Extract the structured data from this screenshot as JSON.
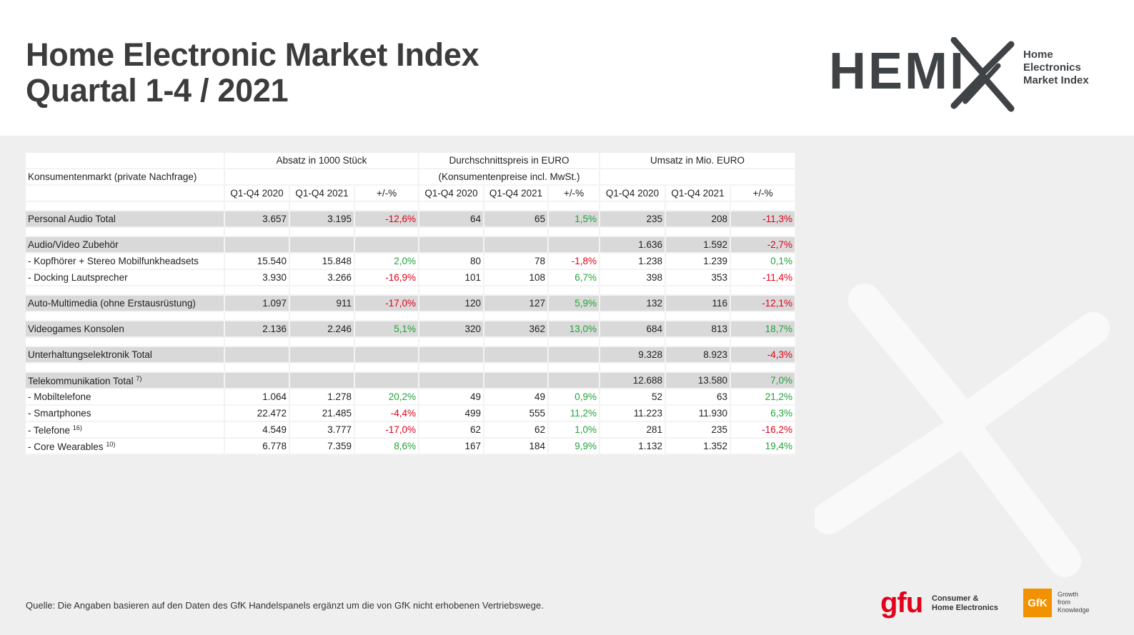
{
  "title": {
    "line1": "Home Electronic Market Index",
    "line2": "Quartal 1-4 / 2021"
  },
  "logo": {
    "word": "HEMI",
    "sub1": "Home",
    "sub2": "Electronics",
    "sub3": "Market Index"
  },
  "table": {
    "group_headers": [
      "Absatz in 1000 Stück",
      "Durchschnittspreis in EURO",
      "Umsatz in Mio. EURO"
    ],
    "market_label": "Konsumentenmarkt (private Nachfrage)",
    "price_note": "(Konsumentenpreise incl. MwSt.)",
    "columns": [
      "Q1-Q4 2020",
      "Q1-Q4 2021",
      "+/-%",
      "Q1-Q4 2020",
      "Q1-Q4 2021",
      "+/-%",
      "Q1-Q4 2020",
      "Q1-Q4 2021",
      "+/-%"
    ],
    "rows": [
      {
        "label": "Personal Audio Total",
        "values": [
          "3.657",
          "3.195",
          "-12,6%",
          "64",
          "65",
          "1,5%",
          "235",
          "208",
          "-11,3%"
        ]
      },
      {
        "label": "Audio/Video Zubehör",
        "values": [
          "",
          "",
          "",
          "",
          "",
          "",
          "1.636",
          "1.592",
          "-2,7%"
        ]
      },
      {
        "label": "- Kopfhörer + Stereo Mobilfunkheadsets",
        "values": [
          "15.540",
          "15.848",
          "2,0%",
          "80",
          "78",
          "-1,8%",
          "1.238",
          "1.239",
          "0,1%"
        ]
      },
      {
        "label": "- Docking Lautsprecher",
        "values": [
          "3.930",
          "3.266",
          "-16,9%",
          "101",
          "108",
          "6,7%",
          "398",
          "353",
          "-11,4%"
        ]
      },
      {
        "label": "Auto-Multimedia (ohne Erstausrüstung)",
        "values": [
          "1.097",
          "911",
          "-17,0%",
          "120",
          "127",
          "5,9%",
          "132",
          "116",
          "-12,1%"
        ]
      },
      {
        "label": "Videogames Konsolen",
        "values": [
          "2.136",
          "2.246",
          "5,1%",
          "320",
          "362",
          "13,0%",
          "684",
          "813",
          "18,7%"
        ]
      },
      {
        "label": "Unterhaltungselektronik Total",
        "values": [
          "",
          "",
          "",
          "",
          "",
          "",
          "9.328",
          "8.923",
          "-4,3%"
        ]
      },
      {
        "label": "Telekommunikation Total",
        "sup": "7)",
        "values": [
          "",
          "",
          "",
          "",
          "",
          "",
          "12.688",
          "13.580",
          "7,0%"
        ]
      },
      {
        "label": "- Mobiltelefone",
        "values": [
          "1.064",
          "1.278",
          "20,2%",
          "49",
          "49",
          "0,9%",
          "52",
          "63",
          "21,2%"
        ]
      },
      {
        "label": "- Smartphones",
        "values": [
          "22.472",
          "21.485",
          "-4,4%",
          "499",
          "555",
          "11,2%",
          "11.223",
          "11.930",
          "6,3%"
        ]
      },
      {
        "label": "- Telefone",
        "sup": "16)",
        "values": [
          "4.549",
          "3.777",
          "-17,0%",
          "62",
          "62",
          "1,0%",
          "281",
          "235",
          "-16,2%"
        ]
      },
      {
        "label": "- Core Wearables",
        "sup": "10)",
        "values": [
          "6.778",
          "7.359",
          "8,6%",
          "167",
          "184",
          "9,9%",
          "1.132",
          "1.352",
          "19,4%"
        ]
      }
    ]
  },
  "source": "Quelle: Die Angaben basieren auf den Daten des GfK Handelspanels ergänzt um die von GfK nicht erhobenen Vertriebswege.",
  "gfu": {
    "mark": "gfu",
    "line1": "Consumer &",
    "line2": "Home Electronics"
  },
  "gfk": {
    "mark": "GfK",
    "line1": "Growth",
    "line2": "from",
    "line3": "Knowledge"
  },
  "colors": {
    "negative": "#e3001b",
    "positive": "#22a339",
    "brand_gfu": "#e2001a",
    "brand_gfk": "#f39200"
  }
}
